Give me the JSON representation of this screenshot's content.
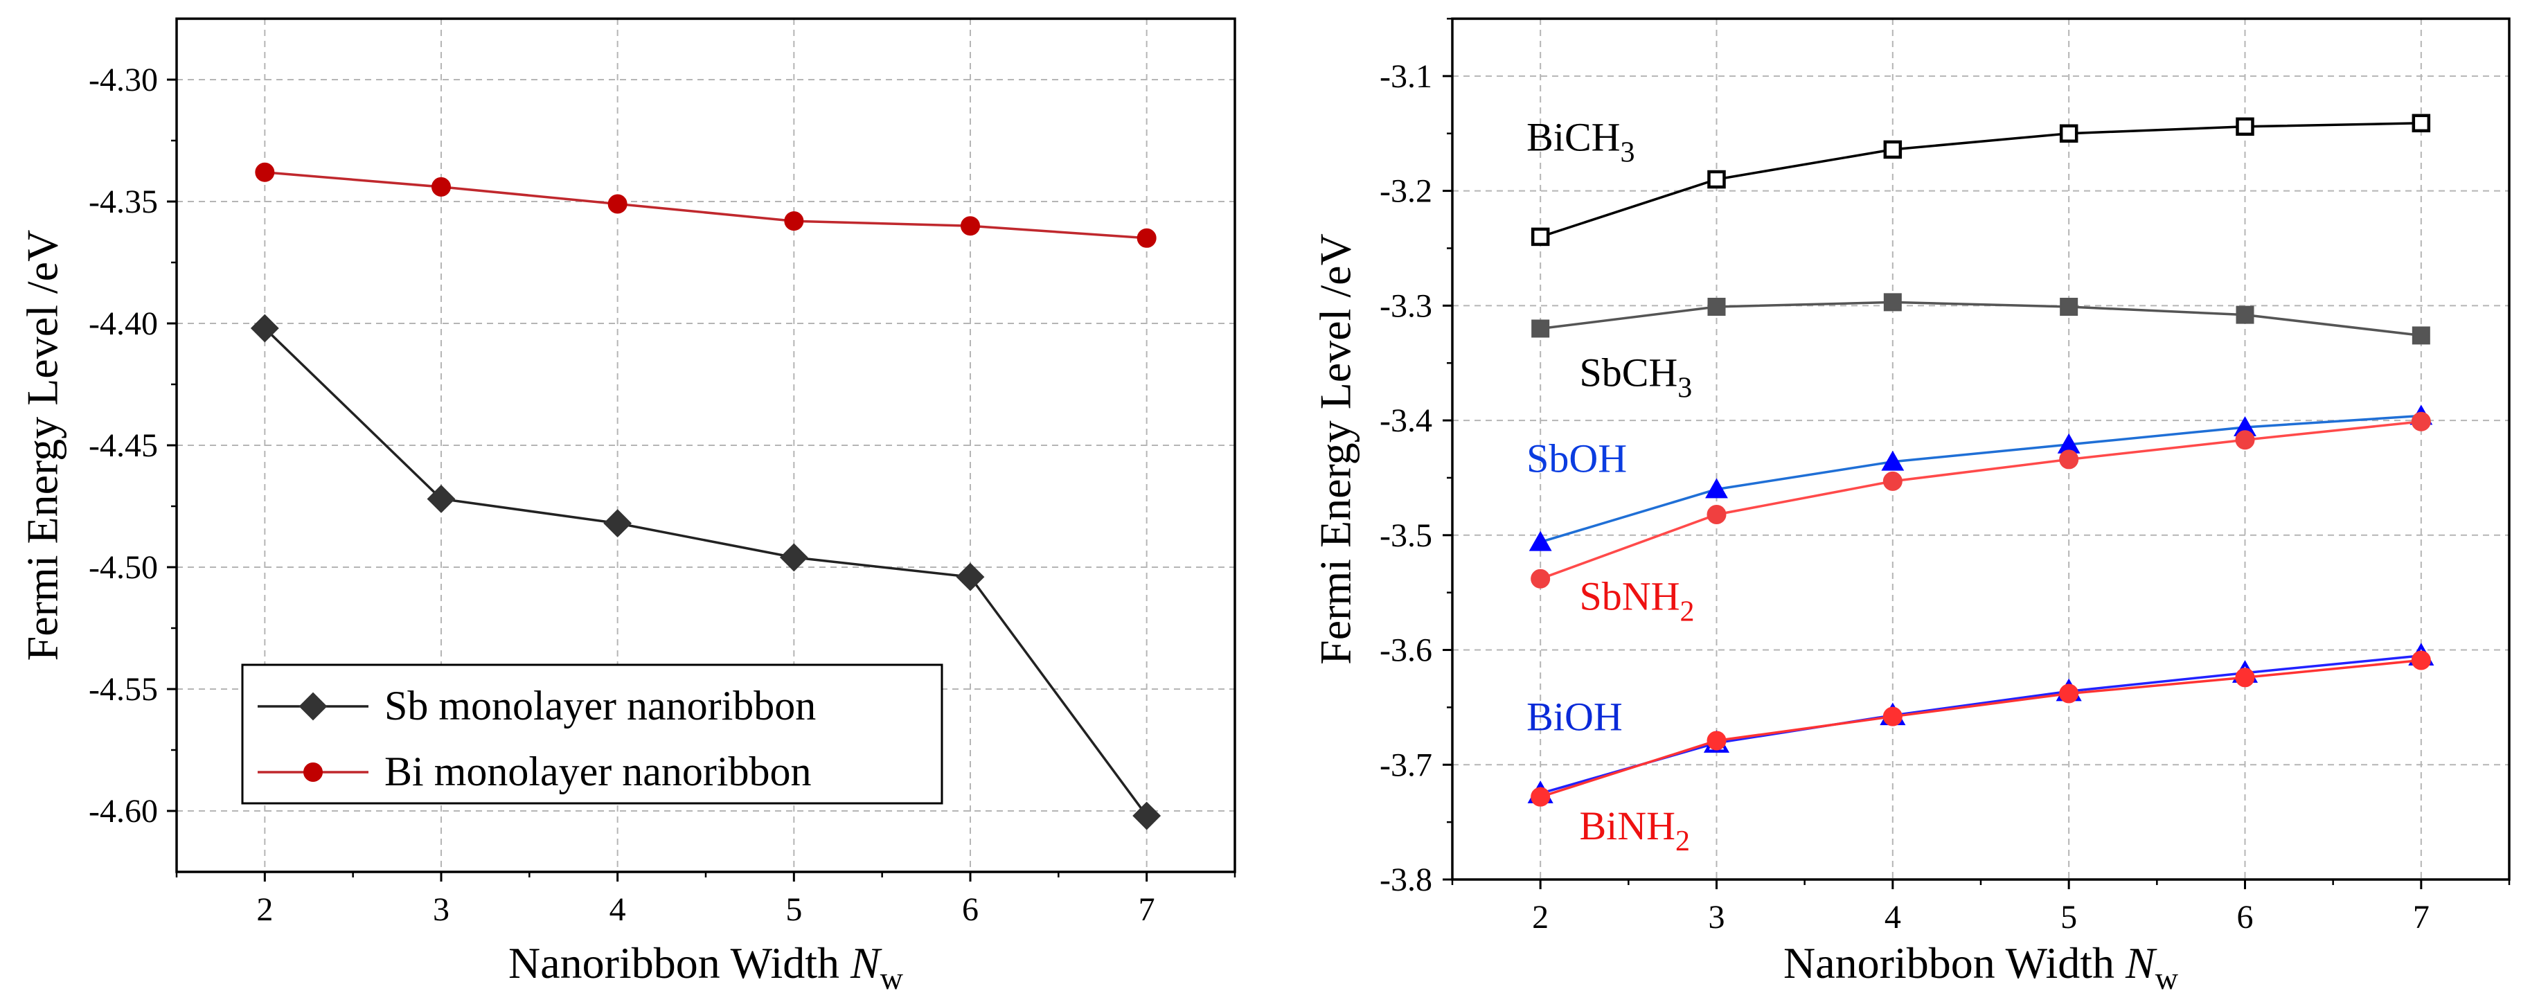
{
  "chart_data": [
    {
      "type": "line",
      "title": "",
      "xlabel": "Nanoribbon Width N_w",
      "xlabel_main": "Nanoribbon Width ",
      "xlabel_var": "N",
      "xlabel_sub": "w",
      "ylabel": "Fermi Energy Level /eV",
      "xlim": [
        1.5,
        7.5
      ],
      "ylim": [
        -4.625,
        -4.275
      ],
      "grid": true,
      "legend_position": "bottom-left",
      "x_ticks": [
        2,
        3,
        4,
        5,
        6,
        7
      ],
      "x_tick_labels": [
        "2",
        "3",
        "4",
        "5",
        "6",
        "7"
      ],
      "y_ticks": [
        -4.3,
        -4.35,
        -4.4,
        -4.45,
        -4.5,
        -4.55,
        -4.6
      ],
      "y_tick_labels": [
        "-4.30",
        "-4.35",
        "-4.40",
        "-4.45",
        "-4.50",
        "-4.55",
        "-4.60"
      ],
      "series": [
        {
          "name": "Sb monolayer nanoribbon",
          "x": [
            2,
            3,
            4,
            5,
            6,
            7
          ],
          "values": [
            -4.402,
            -4.472,
            -4.482,
            -4.496,
            -4.504,
            -4.602
          ],
          "line_color": "#222222",
          "marker": "diamond",
          "marker_color": "#333333",
          "filled": true
        },
        {
          "name": "Bi monolayer nanoribbon",
          "x": [
            2,
            3,
            4,
            5,
            6,
            7
          ],
          "values": [
            -4.338,
            -4.344,
            -4.351,
            -4.358,
            -4.36,
            -4.365
          ],
          "line_color": "#c0282d",
          "marker": "circle",
          "marker_color": "#c00000",
          "filled": true
        }
      ]
    },
    {
      "type": "line",
      "title": "",
      "xlabel": "Nanoribbon Width N_w",
      "xlabel_main": "Nanoribbon Width ",
      "xlabel_var": "N",
      "xlabel_sub": "w",
      "ylabel": "Fermi Energy Level /eV",
      "xlim": [
        1.5,
        7.5
      ],
      "ylim": [
        -3.8,
        -3.05
      ],
      "grid": true,
      "x_ticks": [
        2,
        3,
        4,
        5,
        6,
        7
      ],
      "x_tick_labels": [
        "2",
        "3",
        "4",
        "5",
        "6",
        "7"
      ],
      "y_ticks": [
        -3.1,
        -3.2,
        -3.3,
        -3.4,
        -3.5,
        -3.6,
        -3.7,
        -3.8
      ],
      "y_tick_labels": [
        "-3.1",
        "-3.2",
        "-3.3",
        "-3.4",
        "-3.5",
        "-3.6",
        "-3.7",
        "-3.8"
      ],
      "series": [
        {
          "name": "BiCH3",
          "label_main": "BiCH",
          "label_sub": "3",
          "x": [
            2,
            3,
            4,
            5,
            6,
            7
          ],
          "values": [
            -3.24,
            -3.19,
            -3.164,
            -3.15,
            -3.144,
            -3.141
          ],
          "line_color": "#000000",
          "marker": "square",
          "marker_color": "#000000",
          "filled": false,
          "label_color": "#000000",
          "label_anchor": {
            "x": 2.0,
            "y": -3.165
          }
        },
        {
          "name": "SbCH3",
          "label_main": "SbCH",
          "label_sub": "3",
          "x": [
            2,
            3,
            4,
            5,
            6,
            7
          ],
          "values": [
            -3.32,
            -3.301,
            -3.297,
            -3.301,
            -3.308,
            -3.326
          ],
          "line_color": "#555555",
          "marker": "square",
          "marker_color": "#555555",
          "filled": true,
          "label_color": "#000000",
          "label_anchor": {
            "x": 2.3,
            "y": -3.37
          }
        },
        {
          "name": "SbOH",
          "label_main": "SbOH",
          "label_sub": "",
          "x": [
            2,
            3,
            4,
            5,
            6,
            7
          ],
          "values": [
            -3.506,
            -3.46,
            -3.436,
            -3.421,
            -3.406,
            -3.396
          ],
          "line_color": "#1f6fd6",
          "marker": "triangle",
          "marker_color": "#0000ff",
          "filled": true,
          "label_color": "#0a3ce0",
          "label_anchor": {
            "x": 2.0,
            "y": -3.445
          }
        },
        {
          "name": "SbNH2",
          "label_main": "SbNH",
          "label_sub": "2",
          "x": [
            2,
            3,
            4,
            5,
            6,
            7
          ],
          "values": [
            -3.538,
            -3.482,
            -3.453,
            -3.434,
            -3.417,
            -3.401
          ],
          "line_color": "#ff4a4a",
          "marker": "circle",
          "marker_color": "#f04040",
          "filled": true,
          "label_color": "#ee1111",
          "label_anchor": {
            "x": 2.3,
            "y": -3.565
          }
        },
        {
          "name": "BiOH",
          "label_main": "BiOH",
          "label_sub": "",
          "x": [
            2,
            3,
            4,
            5,
            6,
            7
          ],
          "values": [
            -3.725,
            -3.681,
            -3.657,
            -3.636,
            -3.62,
            -3.605
          ],
          "line_color": "#2222ff",
          "marker": "triangle",
          "marker_color": "#0000ff",
          "filled": false,
          "label_color": "#0a2ad8",
          "label_anchor": {
            "x": 2.0,
            "y": -3.67
          }
        },
        {
          "name": "BiNH2",
          "label_main": "BiNH",
          "label_sub": "2",
          "x": [
            2,
            3,
            4,
            5,
            6,
            7
          ],
          "values": [
            -3.728,
            -3.679,
            -3.658,
            -3.638,
            -3.624,
            -3.609
          ],
          "line_color": "#ff3333",
          "marker": "circle",
          "marker_color": "#ff3030",
          "filled": true,
          "label_color": "#ee1111",
          "label_anchor": {
            "x": 2.3,
            "y": -3.765
          }
        }
      ]
    }
  ]
}
